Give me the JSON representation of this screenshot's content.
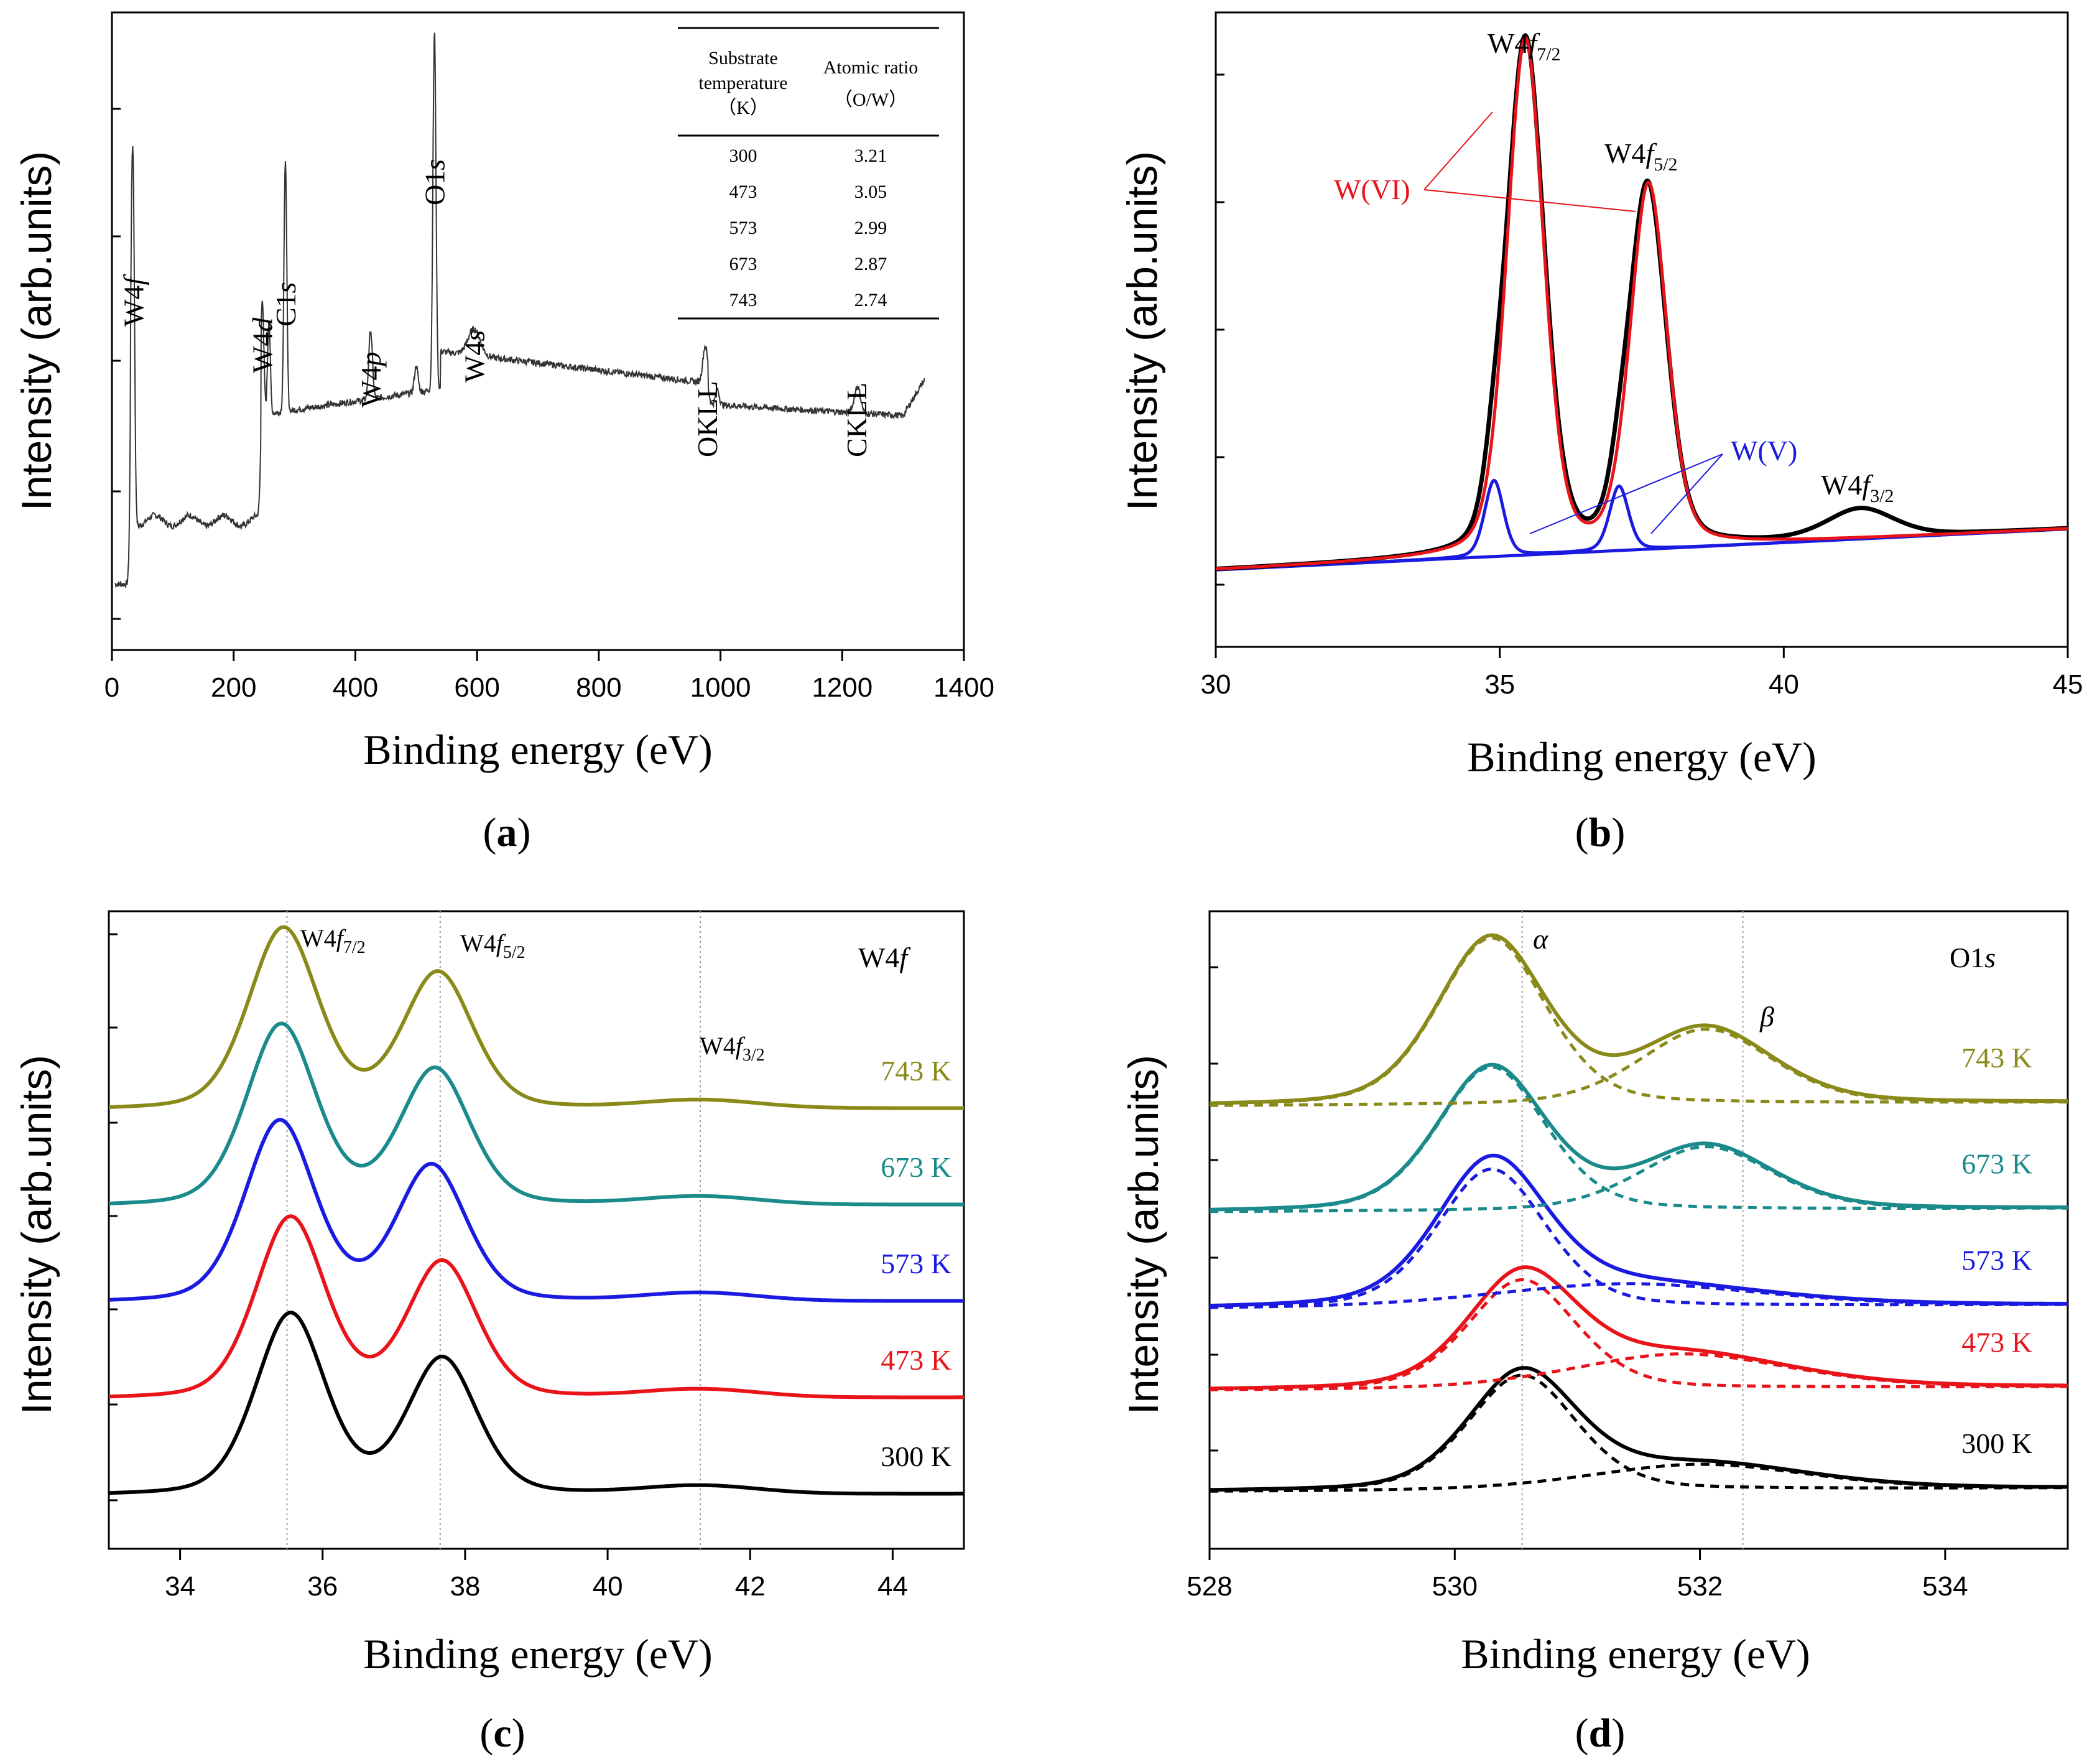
{
  "chart_data": [
    {
      "panel": "a",
      "type": "line",
      "caption": "a",
      "xlabel": "Binding energy (eV)",
      "ylabel": "Intensity (arb.units)",
      "xlim": [
        0,
        1400
      ],
      "xticks": [
        "0",
        "200",
        "400",
        "600",
        "800",
        "1000",
        "1200",
        "1400"
      ],
      "peak_labels": [
        {
          "main": "W4",
          "ital": "f",
          "x": 35
        },
        {
          "main": "W4",
          "ital": "d",
          "x": 247
        },
        {
          "main": "C1",
          "ital": "s",
          "x": 285
        },
        {
          "main": "W4",
          "ital": "p",
          "x": 425
        },
        {
          "main": "O1",
          "ital": "s",
          "x": 530
        },
        {
          "main": "W4",
          "ital": "s",
          "x": 595
        },
        {
          "main": "OKLL",
          "ital": "",
          "x": 978
        },
        {
          "main": "CKLL",
          "ital": "",
          "x": 1223
        }
      ],
      "table": {
        "headers": [
          [
            "Substrate",
            "temperature",
            "（K）"
          ],
          [
            "Atomic ratio",
            "（O/W）"
          ]
        ],
        "rows": [
          [
            "300",
            "3.21"
          ],
          [
            "473",
            "3.05"
          ],
          [
            "573",
            "2.99"
          ],
          [
            "673",
            "2.87"
          ],
          [
            "743",
            "2.74"
          ]
        ]
      }
    },
    {
      "panel": "b",
      "type": "line",
      "caption": "b",
      "xlabel": "Binding energy (eV)",
      "ylabel": "Intensity (arb.units)",
      "xlim": [
        30,
        45
      ],
      "xticks": [
        "30",
        "35",
        "40",
        "45"
      ],
      "labels": {
        "w47": "W4",
        "w45": "W4",
        "w43": "W4",
        "f": "f",
        "s72": "7/2",
        "s52": "5/2",
        "s32": "3/2",
        "wvi": "W(VI)",
        "wv": "W(V)"
      },
      "series": [
        {
          "name": "envelope",
          "color": "#000000",
          "peaks": [
            [
              35.45,
              0.88,
              0.34
            ],
            [
              37.6,
              0.62,
              0.34
            ],
            [
              34.9,
              0.02,
              0.2
            ],
            [
              41.35,
              0.05,
              0.6
            ]
          ]
        },
        {
          "name": "W(VI)",
          "color": "#e8141a",
          "peaks": [
            [
              35.45,
              0.88,
              0.33
            ],
            [
              37.62,
              0.62,
              0.33
            ]
          ]
        },
        {
          "name": "W(V)",
          "color": "#1a1ae0",
          "peaks": [
            [
              34.9,
              0.13,
              0.17
            ],
            [
              37.1,
              0.11,
              0.17
            ]
          ]
        }
      ],
      "baseline": {
        "color": "#1a1ae0",
        "from": [
          30,
          0.02
        ],
        "to": [
          45,
          0.09
        ]
      }
    },
    {
      "panel": "c",
      "type": "line",
      "caption": "c",
      "title_main": "W4",
      "title_ital": "f",
      "xlabel": "Binding energy (eV)",
      "ylabel": "Intensity (arb.units)",
      "xlim": [
        33,
        45
      ],
      "xticks": [
        "34",
        "36",
        "38",
        "40",
        "42",
        "44"
      ],
      "ref_lines": [
        35.5,
        37.65,
        41.3
      ],
      "ref_labels": {
        "main": "W4",
        "ital": "f",
        "s72": "7/2",
        "s52": "5/2",
        "s32": "3/2"
      },
      "series": [
        {
          "name": "300 K",
          "color": "#000000",
          "offset": 0.0,
          "p1": 35.55,
          "p2": 37.68
        },
        {
          "name": "473 K",
          "color": "#e8141a",
          "offset": 1.0,
          "p1": 35.55,
          "p2": 37.68
        },
        {
          "name": "573 K",
          "color": "#1a1ae0",
          "offset": 2.0,
          "p1": 35.4,
          "p2": 37.53
        },
        {
          "name": "673 K",
          "color": "#1a8a8a",
          "offset": 3.0,
          "p1": 35.42,
          "p2": 37.58
        },
        {
          "name": "743 K",
          "color": "#8a8a1a",
          "offset": 4.0,
          "p1": 35.45,
          "p2": 37.62
        }
      ]
    },
    {
      "panel": "d",
      "type": "line",
      "caption": "d",
      "title_main": "O1",
      "title_ital": "s",
      "xlabel": "Binding energy (eV)",
      "ylabel": "Intensity (arb.units)",
      "xlim": [
        528,
        535
      ],
      "xticks": [
        "528",
        "530",
        "532",
        "534"
      ],
      "ref_lines": [
        530.55,
        532.35
      ],
      "ref_labels": {
        "alpha": "α",
        "beta": "β"
      },
      "series": [
        {
          "name": "300 K",
          "color": "#000000",
          "offset": 0.0,
          "a": [
            530.55,
            1.0,
            0.45
          ],
          "b": [
            532.0,
            0.22,
            0.9
          ]
        },
        {
          "name": "473 K",
          "color": "#e8141a",
          "offset": 1.05,
          "a": [
            530.55,
            0.95,
            0.45
          ],
          "b": [
            531.85,
            0.3,
            0.9
          ]
        },
        {
          "name": "573 K",
          "color": "#1a1ae0",
          "offset": 1.9,
          "a": [
            530.3,
            1.2,
            0.45
          ],
          "b": [
            531.4,
            0.2,
            1.1
          ]
        },
        {
          "name": "673 K",
          "color": "#1a8a8a",
          "offset": 2.9,
          "a": [
            530.3,
            1.25,
            0.45
          ],
          "b": [
            532.05,
            0.55,
            0.55
          ]
        },
        {
          "name": "743 K",
          "color": "#8a8a1a",
          "offset": 4.0,
          "a": [
            530.3,
            1.45,
            0.45
          ],
          "b": [
            532.05,
            0.65,
            0.55
          ]
        }
      ]
    }
  ]
}
